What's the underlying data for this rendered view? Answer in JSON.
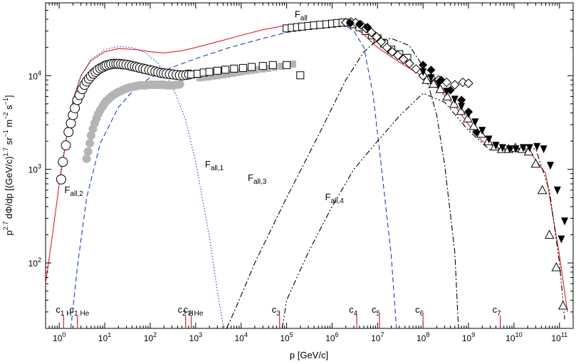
{
  "chart_data": {
    "type": "scatter",
    "title": "",
    "xlabel": "p [GeV/c]",
    "ylabel": "p^2.7 dΦ/dp [(GeV/c)^1.7 sr^-1 m^-2 s^-1]",
    "ylabel_parts": {
      "main": "p",
      "sup1": "2.7",
      "mid": " dΦ/dp [(GeV/c)",
      "sup2": "1.7",
      "rest1": " sr",
      "sup3": "−1",
      "rest2": " m",
      "sup4": "−2",
      "rest3": " s",
      "sup5": "−1",
      "close": "]"
    },
    "xscale": "log",
    "yscale": "log",
    "xlim": [
      0.5,
      200000000000
    ],
    "ylim": [
      20,
      60000
    ],
    "x_ticks": [
      {
        "value": 1,
        "base": "10",
        "exp": "0"
      },
      {
        "value": 10,
        "base": "10",
        "exp": "1"
      },
      {
        "value": 100,
        "base": "10",
        "exp": "2"
      },
      {
        "value": 1000,
        "base": "10",
        "exp": "3"
      },
      {
        "value": 10000,
        "base": "10",
        "exp": "4"
      },
      {
        "value": 100000,
        "base": "10",
        "exp": "5"
      },
      {
        "value": 1000000,
        "base": "10",
        "exp": "6"
      },
      {
        "value": 10000000,
        "base": "10",
        "exp": "7"
      },
      {
        "value": 100000000,
        "base": "10",
        "exp": "8"
      },
      {
        "value": 1000000000,
        "base": "10",
        "exp": "9"
      },
      {
        "value": 10000000000,
        "base": "10",
        "exp": "10"
      },
      {
        "value": 100000000000,
        "base": "10",
        "exp": "11"
      }
    ],
    "y_ticks": [
      {
        "value": 100,
        "base": "10",
        "exp": "2"
      },
      {
        "value": 1000,
        "base": "10",
        "exp": "3"
      },
      {
        "value": 10000,
        "base": "10",
        "exp": "4"
      }
    ],
    "annotations": [
      {
        "name": "label-f-all",
        "main": "F",
        "sub": "all",
        "x": 150000,
        "y": 42000
      },
      {
        "name": "label-f-all-1",
        "main": "F",
        "sub": "all,1",
        "x": 1600,
        "y": 1050
      },
      {
        "name": "label-f-all-2",
        "main": "F",
        "sub": "all,2",
        "x": 1.3,
        "y": 560
      },
      {
        "name": "label-f-all-3",
        "main": "F",
        "sub": "all,3",
        "x": 14000,
        "y": 750
      },
      {
        "name": "label-f-all-4",
        "main": "F",
        "sub": "all,4",
        "x": 700000,
        "y": 470
      }
    ],
    "cutoff_markers": [
      {
        "label": "c",
        "sub": "1 H",
        "x": 1.25
      },
      {
        "label": "c",
        "sub": "1 He",
        "x": 2.5
      },
      {
        "label": "c",
        "sub": "2 H",
        "x": 600
      },
      {
        "label": "c",
        "sub": "2 He",
        "x": 800
      },
      {
        "label": "c",
        "sub": "3",
        "x": 70000
      },
      {
        "label": "c",
        "sub": "4",
        "x": 3500000
      },
      {
        "label": "c",
        "sub": "5",
        "x": 11000000
      },
      {
        "label": "c",
        "sub": "6",
        "x": 100000000
      },
      {
        "label": "c",
        "sub": "7",
        "x": 5000000000
      }
    ],
    "models": [
      {
        "name": "F_all",
        "color": "#e0202a",
        "style": "solid",
        "x": [
          0.5,
          0.7,
          1,
          1.5,
          2,
          3,
          5,
          10,
          20,
          50,
          100,
          200,
          500,
          1000,
          3000,
          10000,
          30000,
          100000,
          300000,
          1000000,
          2000000,
          3000000,
          5000000,
          10000000,
          30000000,
          100000000,
          200000000,
          500000000,
          1000000000,
          2000000000,
          5000000000,
          10000000000,
          20000000000,
          50000000000,
          100000000000,
          150000000000
        ],
        "y": [
          60,
          190,
          700,
          2400,
          5500,
          10000,
          14500,
          18000,
          19500,
          19000,
          18000,
          17500,
          18500,
          20000,
          23000,
          27000,
          31000,
          34500,
          36500,
          37500,
          36500,
          33000,
          27500,
          20000,
          14000,
          9800,
          7500,
          4800,
          3000,
          2000,
          1650,
          1700,
          1650,
          900,
          120,
          30
        ]
      },
      {
        "name": "F_all_1",
        "color": "#1a3ccf",
        "style": "dotted",
        "x": [
          1,
          1.5,
          2,
          3,
          5,
          10,
          20,
          40,
          80,
          150,
          300,
          600,
          1000,
          2000,
          3000,
          4000,
          4500
        ],
        "y": [
          800,
          2600,
          5500,
          10000,
          15000,
          19000,
          20500,
          20000,
          17500,
          13500,
          8000,
          3400,
          1200,
          190,
          50,
          22,
          20
        ]
      },
      {
        "name": "F_all_2",
        "color": "#1a3ccf",
        "style": "dashed",
        "x": [
          1.8,
          2.5,
          4,
          8,
          20,
          50,
          100,
          300,
          1000,
          5000,
          30000,
          200000,
          1000000,
          2000000,
          3000000,
          5000000,
          8000000,
          12000000,
          20000000,
          26000000
        ],
        "y": [
          20,
          90,
          500,
          1900,
          4600,
          7600,
          9500,
          12300,
          15200,
          19700,
          25000,
          31500,
          35000,
          34000,
          30000,
          20000,
          6200,
          1100,
          120,
          20
        ]
      },
      {
        "name": "F_all_3",
        "color": "#000000",
        "style": "dashdot",
        "x": [
          4800,
          7000,
          20000,
          100000,
          500000,
          2000000,
          5000000,
          10000000,
          20000000,
          50000000,
          100000000,
          200000000,
          300000000,
          500000000,
          600000000
        ],
        "y": [
          20,
          30,
          100,
          500,
          2300,
          9000,
          18000,
          24000,
          25000,
          21000,
          12500,
          3800,
          1100,
          130,
          20
        ]
      },
      {
        "name": "F_all_4",
        "color": "#000000",
        "style": "dashdotdot",
        "x": [
          80000,
          100000,
          300000,
          1000000,
          3000000,
          10000000,
          30000000,
          100000000,
          300000000,
          1000000000,
          3000000000,
          10000000000,
          30000000000,
          60000000000,
          100000000000,
          130000000000
        ],
        "y": [
          20,
          40,
          130,
          400,
          1000,
          2000,
          3700,
          6500,
          5200,
          2600,
          1600,
          1650,
          1650,
          600,
          100,
          25
        ]
      }
    ],
    "series": [
      {
        "name": "open-circles",
        "marker": "circle-open",
        "x": [
          1.1,
          1.2,
          1.4,
          1.6,
          1.8,
          2,
          2.2,
          2.5,
          2.8,
          3.2,
          3.6,
          4,
          4.5,
          5,
          5.6,
          6.3,
          7,
          8,
          9,
          10,
          11,
          12.5,
          14,
          16,
          18,
          20,
          23,
          26,
          30,
          35,
          40,
          46,
          52,
          60,
          70,
          80,
          95,
          110,
          130,
          150,
          175,
          200,
          230,
          270,
          320,
          380,
          450,
          530,
          620,
          720
        ],
        "y": [
          780,
          1200,
          1800,
          2500,
          3100,
          3800,
          4500,
          5500,
          6200,
          7200,
          8000,
          8700,
          9300,
          9900,
          10500,
          11000,
          11500,
          12000,
          12300,
          12700,
          12900,
          13100,
          13300,
          13400,
          13400,
          13400,
          13300,
          13200,
          13100,
          12900,
          12700,
          12500,
          12300,
          12100,
          11900,
          11700,
          11500,
          11300,
          11100,
          10900,
          10700,
          10600,
          10500,
          10400,
          10300,
          10200,
          10100,
          10100,
          10200,
          10300
        ]
      },
      {
        "name": "filled-gray-circles",
        "marker": "circle-gray",
        "x": [
          4,
          4.3,
          4.7,
          5,
          5.5,
          6,
          6.6,
          7.2,
          8,
          9,
          10,
          11,
          12.5,
          14,
          16,
          18,
          20,
          23,
          26,
          30,
          35,
          40,
          46,
          52,
          60,
          70,
          80,
          95,
          110,
          130,
          150,
          175,
          200,
          230,
          270,
          320,
          380,
          450
        ],
        "y": [
          1300,
          1550,
          1900,
          2300,
          2700,
          3100,
          3500,
          3900,
          4300,
          4700,
          5100,
          5400,
          5700,
          6000,
          6300,
          6500,
          6700,
          6900,
          7100,
          7300,
          7500,
          7600,
          7700,
          7800,
          7900,
          7900,
          7900,
          8000,
          8000,
          8000,
          8000,
          8000,
          8000,
          7900,
          7900,
          7900,
          8000,
          8100
        ]
      },
      {
        "name": "gray-squares",
        "marker": "square-gray",
        "x": [
          1200,
          1500,
          1900,
          2400,
          3000,
          4000,
          5000,
          6500,
          8000,
          10000,
          13000,
          17000,
          22000,
          30000,
          40000,
          55000,
          75000,
          100000,
          140000
        ],
        "y": [
          9500,
          9600,
          9700,
          9900,
          10000,
          10200,
          10400,
          10600,
          10800,
          11000,
          11200,
          11400,
          11600,
          11800,
          12000,
          12300,
          12600,
          12900,
          13300
        ]
      },
      {
        "name": "open-squares-low",
        "marker": "square-open",
        "x": [
          800,
          1100,
          1500,
          2000,
          3000,
          4500,
          7000,
          11000,
          17000,
          30000,
          50000,
          100000,
          200000
        ],
        "y": [
          10300,
          10500,
          10800,
          11000,
          11300,
          11600,
          11900,
          12100,
          12400,
          12700,
          13000,
          13000,
          10100
        ]
      },
      {
        "name": "open-squares-high",
        "marker": "square-open",
        "x": [
          100000,
          130000,
          170000,
          220000,
          300000,
          400000,
          550000,
          750000,
          1000000,
          1300000,
          1700000,
          2200000,
          3000000,
          4000000,
          5500000,
          7500000,
          10000000,
          14000000,
          20000000,
          30000000,
          45000000
        ],
        "y": [
          32000,
          32500,
          33000,
          33500,
          34000,
          34500,
          35000,
          35500,
          36000,
          36500,
          37000,
          36800,
          35500,
          33000,
          30000,
          27000,
          25000,
          22000,
          19000,
          17000,
          15500
        ]
      },
      {
        "name": "open-diamonds",
        "marker": "diamond-open",
        "x": [
          2000000,
          2600000,
          3300000,
          4300000,
          5600000,
          7300000,
          9500000,
          12000000,
          16000000,
          21000000,
          28000000,
          37000000,
          50000000,
          70000000,
          100000000,
          150000000,
          220000000,
          330000000,
          500000000,
          750000000,
          1000000000
        ],
        "y": [
          37000,
          37500,
          37000,
          35000,
          32000,
          29000,
          26000,
          23000,
          20000,
          18000,
          16500,
          15000,
          13500,
          11800,
          10000,
          9500,
          9000,
          8500,
          8000,
          8500,
          8300
        ]
      },
      {
        "name": "filled-diamonds",
        "marker": "diamond-filled",
        "x": [
          2500000,
          4000000,
          6000000,
          100000000,
          150000000,
          250000000,
          400000000,
          700000000,
          1000000000,
          1500000000
        ],
        "y": [
          36500,
          35500,
          33000,
          13000,
          11500,
          9000,
          7000,
          5500,
          4100,
          2500
        ]
      },
      {
        "name": "open-triangles",
        "marker": "triangle-open",
        "x": [
          120000000,
          170000000,
          240000000,
          340000000,
          480000000,
          680000000,
          960000000,
          1300000000,
          1900000000,
          2700000000,
          3800000000,
          5400000000,
          7600000000,
          10700000000,
          15000000000,
          21000000000,
          30000000000,
          42000000000,
          60000000000,
          85000000000,
          120000000000
        ],
        "y": [
          9000,
          8200,
          7200,
          6000,
          5000,
          4200,
          3500,
          2900,
          2400,
          2000,
          1750,
          1650,
          1650,
          1700,
          1650,
          1550,
          1150,
          600,
          200,
          90,
          35
        ]
      },
      {
        "name": "filled-down-triangles",
        "marker": "triangle-down-filled",
        "x": [
          100000000,
          150000000,
          220000000,
          330000000,
          500000000,
          700000000,
          1000000000,
          1400000000,
          2000000000,
          2800000000,
          4000000000,
          5600000000,
          8000000000,
          11000000000,
          16000000000,
          22000000000,
          32000000000,
          45000000000,
          63000000000,
          90000000000,
          110000000000,
          130000000000
        ],
        "y": [
          11000,
          9500,
          8200,
          6800,
          5600,
          4700,
          3900,
          3200,
          2600,
          2100,
          1800,
          1700,
          1650,
          1650,
          1700,
          1700,
          1750,
          1650,
          1100,
          600,
          180,
          280
        ]
      }
    ]
  }
}
